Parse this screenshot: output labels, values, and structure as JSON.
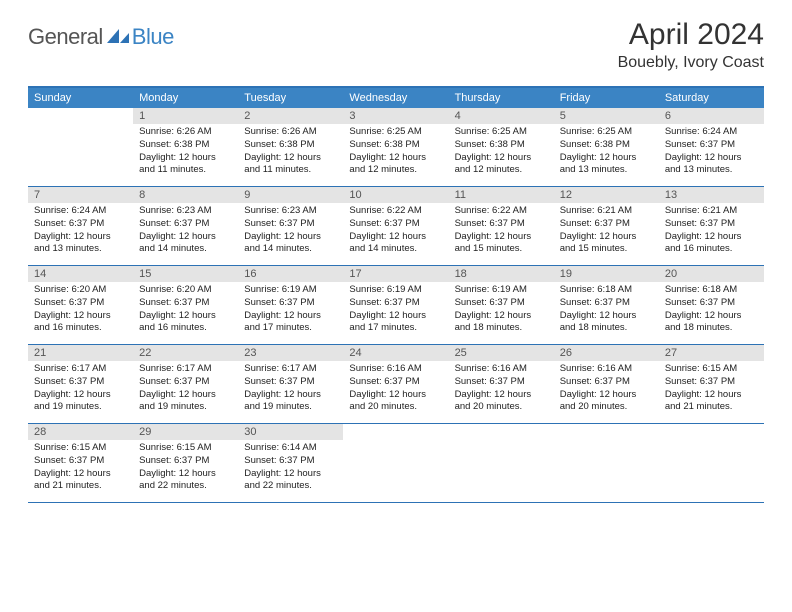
{
  "logo": {
    "text1": "General",
    "text2": "Blue"
  },
  "brand_color": "#3b84c4",
  "header_bar_color": "#2d72b5",
  "daynum_bg": "#e4e4e4",
  "title": "April 2024",
  "location": "Bouebly, Ivory Coast",
  "weekdays": [
    "Sunday",
    "Monday",
    "Tuesday",
    "Wednesday",
    "Thursday",
    "Friday",
    "Saturday"
  ],
  "weeks": [
    [
      null,
      {
        "n": "1",
        "sunrise": "6:26 AM",
        "sunset": "6:38 PM",
        "daylight": "12 hours and 11 minutes."
      },
      {
        "n": "2",
        "sunrise": "6:26 AM",
        "sunset": "6:38 PM",
        "daylight": "12 hours and 11 minutes."
      },
      {
        "n": "3",
        "sunrise": "6:25 AM",
        "sunset": "6:38 PM",
        "daylight": "12 hours and 12 minutes."
      },
      {
        "n": "4",
        "sunrise": "6:25 AM",
        "sunset": "6:38 PM",
        "daylight": "12 hours and 12 minutes."
      },
      {
        "n": "5",
        "sunrise": "6:25 AM",
        "sunset": "6:38 PM",
        "daylight": "12 hours and 13 minutes."
      },
      {
        "n": "6",
        "sunrise": "6:24 AM",
        "sunset": "6:37 PM",
        "daylight": "12 hours and 13 minutes."
      }
    ],
    [
      {
        "n": "7",
        "sunrise": "6:24 AM",
        "sunset": "6:37 PM",
        "daylight": "12 hours and 13 minutes."
      },
      {
        "n": "8",
        "sunrise": "6:23 AM",
        "sunset": "6:37 PM",
        "daylight": "12 hours and 14 minutes."
      },
      {
        "n": "9",
        "sunrise": "6:23 AM",
        "sunset": "6:37 PM",
        "daylight": "12 hours and 14 minutes."
      },
      {
        "n": "10",
        "sunrise": "6:22 AM",
        "sunset": "6:37 PM",
        "daylight": "12 hours and 14 minutes."
      },
      {
        "n": "11",
        "sunrise": "6:22 AM",
        "sunset": "6:37 PM",
        "daylight": "12 hours and 15 minutes."
      },
      {
        "n": "12",
        "sunrise": "6:21 AM",
        "sunset": "6:37 PM",
        "daylight": "12 hours and 15 minutes."
      },
      {
        "n": "13",
        "sunrise": "6:21 AM",
        "sunset": "6:37 PM",
        "daylight": "12 hours and 16 minutes."
      }
    ],
    [
      {
        "n": "14",
        "sunrise": "6:20 AM",
        "sunset": "6:37 PM",
        "daylight": "12 hours and 16 minutes."
      },
      {
        "n": "15",
        "sunrise": "6:20 AM",
        "sunset": "6:37 PM",
        "daylight": "12 hours and 16 minutes."
      },
      {
        "n": "16",
        "sunrise": "6:19 AM",
        "sunset": "6:37 PM",
        "daylight": "12 hours and 17 minutes."
      },
      {
        "n": "17",
        "sunrise": "6:19 AM",
        "sunset": "6:37 PM",
        "daylight": "12 hours and 17 minutes."
      },
      {
        "n": "18",
        "sunrise": "6:19 AM",
        "sunset": "6:37 PM",
        "daylight": "12 hours and 18 minutes."
      },
      {
        "n": "19",
        "sunrise": "6:18 AM",
        "sunset": "6:37 PM",
        "daylight": "12 hours and 18 minutes."
      },
      {
        "n": "20",
        "sunrise": "6:18 AM",
        "sunset": "6:37 PM",
        "daylight": "12 hours and 18 minutes."
      }
    ],
    [
      {
        "n": "21",
        "sunrise": "6:17 AM",
        "sunset": "6:37 PM",
        "daylight": "12 hours and 19 minutes."
      },
      {
        "n": "22",
        "sunrise": "6:17 AM",
        "sunset": "6:37 PM",
        "daylight": "12 hours and 19 minutes."
      },
      {
        "n": "23",
        "sunrise": "6:17 AM",
        "sunset": "6:37 PM",
        "daylight": "12 hours and 19 minutes."
      },
      {
        "n": "24",
        "sunrise": "6:16 AM",
        "sunset": "6:37 PM",
        "daylight": "12 hours and 20 minutes."
      },
      {
        "n": "25",
        "sunrise": "6:16 AM",
        "sunset": "6:37 PM",
        "daylight": "12 hours and 20 minutes."
      },
      {
        "n": "26",
        "sunrise": "6:16 AM",
        "sunset": "6:37 PM",
        "daylight": "12 hours and 20 minutes."
      },
      {
        "n": "27",
        "sunrise": "6:15 AM",
        "sunset": "6:37 PM",
        "daylight": "12 hours and 21 minutes."
      }
    ],
    [
      {
        "n": "28",
        "sunrise": "6:15 AM",
        "sunset": "6:37 PM",
        "daylight": "12 hours and 21 minutes."
      },
      {
        "n": "29",
        "sunrise": "6:15 AM",
        "sunset": "6:37 PM",
        "daylight": "12 hours and 22 minutes."
      },
      {
        "n": "30",
        "sunrise": "6:14 AM",
        "sunset": "6:37 PM",
        "daylight": "12 hours and 22 minutes."
      },
      null,
      null,
      null,
      null
    ]
  ],
  "labels": {
    "sunrise": "Sunrise: ",
    "sunset": "Sunset: ",
    "daylight": "Daylight: "
  }
}
